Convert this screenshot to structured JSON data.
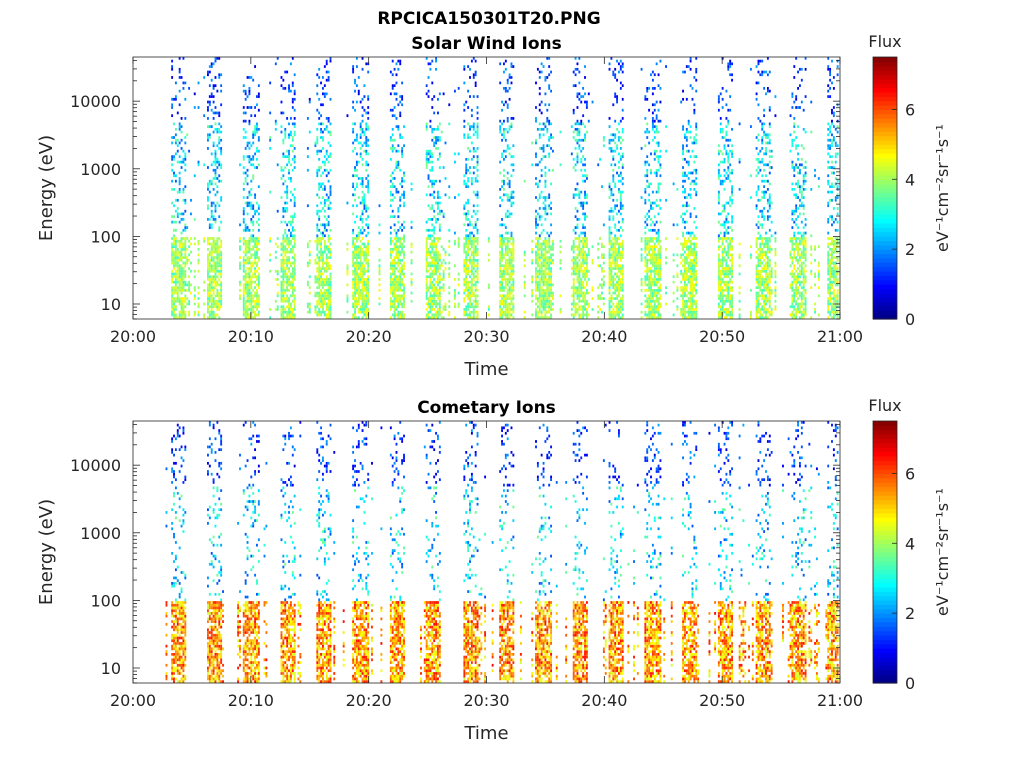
{
  "figure": {
    "filename": "RPCICA150301T20.PNG"
  },
  "chart_data": [
    {
      "type": "heatmap",
      "title": "Solar Wind Ions",
      "xlabel": "Time",
      "ylabel": "Energy (eV)",
      "x_ticks": [
        "20:00",
        "20:10",
        "20:20",
        "20:30",
        "20:40",
        "20:50",
        "21:00"
      ],
      "x_range": [
        "20:00",
        "21:00"
      ],
      "y_scale": "log",
      "y_ticks": [
        10,
        100,
        1000,
        10000
      ],
      "y_tick_labels": [
        "10",
        "100",
        "1000",
        "10000"
      ],
      "y_range": [
        6,
        45000
      ],
      "colorbar": {
        "label": "Flux",
        "units": "eV⁻¹cm⁻²sr⁻¹s⁻¹",
        "range": [
          0,
          7.5
        ],
        "ticks": [
          0,
          2,
          4,
          6
        ]
      },
      "grid": false,
      "seed": 11
    },
    {
      "type": "heatmap",
      "title": "Cometary Ions",
      "xlabel": "Time",
      "ylabel": "Energy (eV)",
      "x_ticks": [
        "20:00",
        "20:10",
        "20:20",
        "20:30",
        "20:40",
        "20:50",
        "21:00"
      ],
      "x_range": [
        "20:00",
        "21:00"
      ],
      "y_scale": "log",
      "y_ticks": [
        10,
        100,
        1000,
        10000
      ],
      "y_tick_labels": [
        "10",
        "100",
        "1000",
        "10000"
      ],
      "y_range": [
        6,
        45000
      ],
      "colorbar": {
        "label": "Flux",
        "units": "eV⁻¹cm⁻²sr⁻¹s⁻¹",
        "range": [
          0,
          7.5
        ],
        "ticks": [
          0,
          2,
          4,
          6
        ]
      },
      "grid": false,
      "seed": 29
    }
  ]
}
